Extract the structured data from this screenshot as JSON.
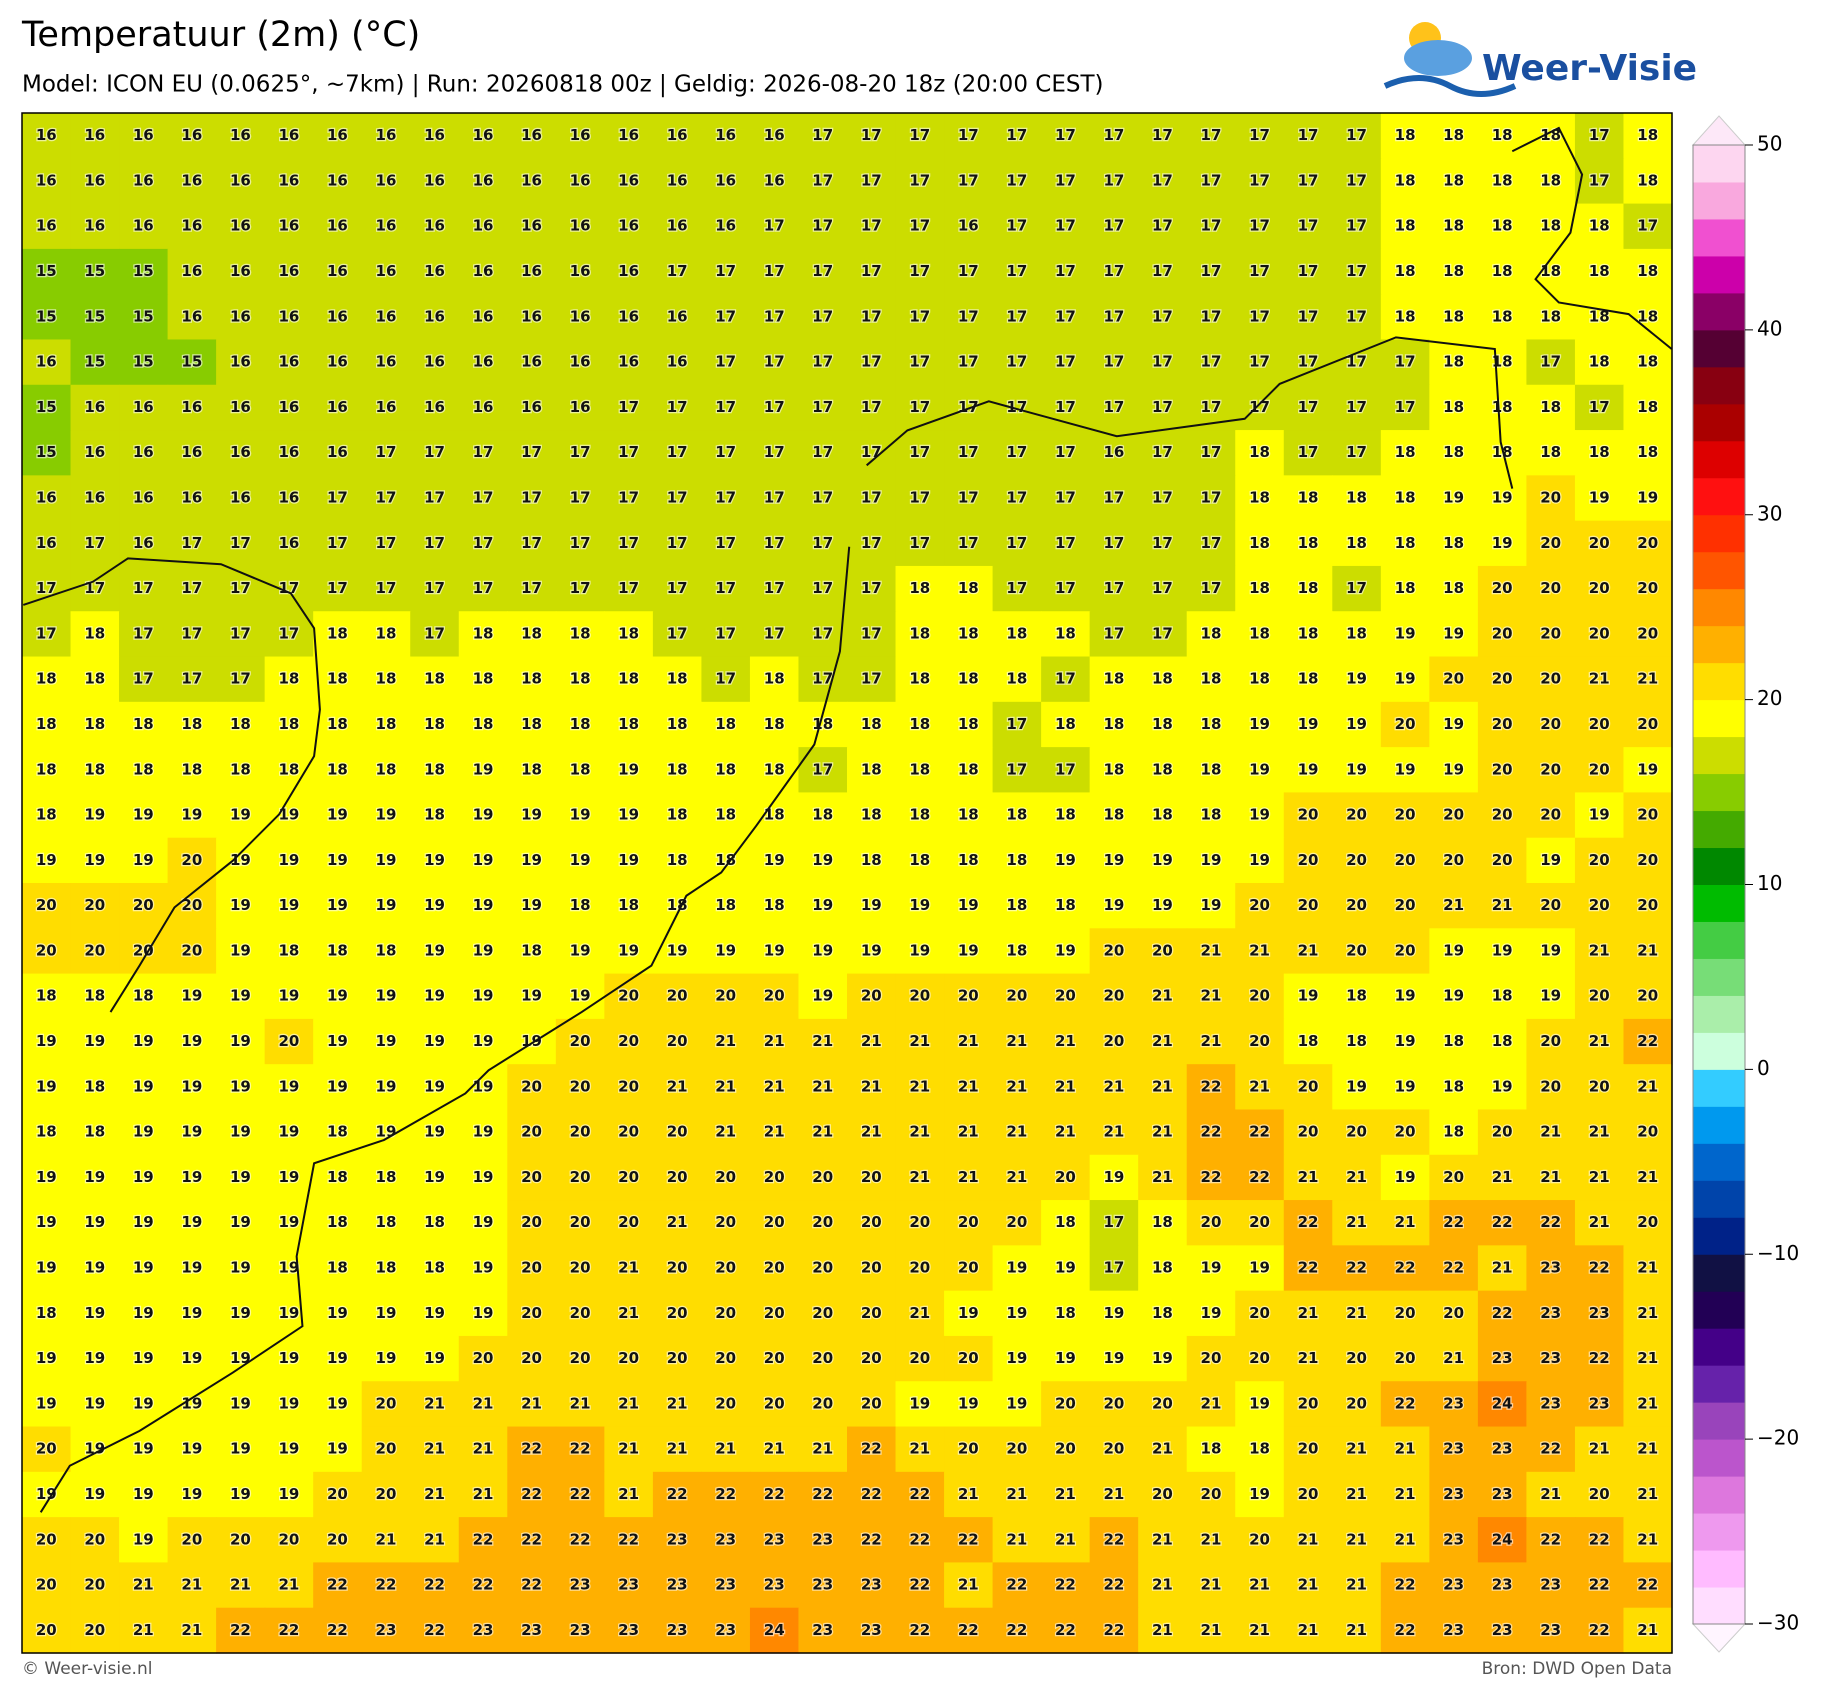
{
  "header": {
    "title": "Temperatuur (2m) (°C)",
    "subtitle": "Model: ICON EU (0.0625°, ~7km)  |  Run: 20260818 00z  |  Geldig: 2026-08-20 18z (20:00 CEST)"
  },
  "logo": {
    "text": "Weer-Visie"
  },
  "map": {
    "rows": [
      [
        16,
        16,
        16,
        16,
        16,
        16,
        16,
        16,
        16,
        16,
        16,
        16,
        16,
        16,
        16,
        16,
        17,
        17,
        17,
        17,
        17,
        17,
        17,
        17,
        17,
        17,
        17,
        17,
        18,
        18,
        18,
        18,
        17,
        18
      ],
      [
        16,
        16,
        16,
        16,
        16,
        16,
        16,
        16,
        16,
        16,
        16,
        16,
        16,
        16,
        16,
        16,
        17,
        17,
        17,
        17,
        17,
        17,
        17,
        17,
        17,
        17,
        17,
        17,
        18,
        18,
        18,
        18,
        17,
        18
      ],
      [
        16,
        16,
        16,
        16,
        16,
        16,
        16,
        16,
        16,
        16,
        16,
        16,
        16,
        16,
        16,
        17,
        17,
        17,
        17,
        16,
        17,
        17,
        17,
        17,
        17,
        17,
        17,
        17,
        18,
        18,
        18,
        18,
        18,
        17
      ],
      [
        15,
        15,
        15,
        16,
        16,
        16,
        16,
        16,
        16,
        16,
        16,
        16,
        16,
        17,
        17,
        17,
        17,
        17,
        17,
        17,
        17,
        17,
        17,
        17,
        17,
        17,
        17,
        17,
        18,
        18,
        18,
        18,
        18,
        18
      ],
      [
        15,
        15,
        15,
        16,
        16,
        16,
        16,
        16,
        16,
        16,
        16,
        16,
        16,
        16,
        17,
        17,
        17,
        17,
        17,
        17,
        17,
        17,
        17,
        17,
        17,
        17,
        17,
        17,
        18,
        18,
        18,
        18,
        18,
        18
      ],
      [
        16,
        15,
        15,
        15,
        16,
        16,
        16,
        16,
        16,
        16,
        16,
        16,
        16,
        16,
        17,
        17,
        17,
        17,
        17,
        17,
        17,
        17,
        17,
        17,
        17,
        17,
        17,
        17,
        17,
        18,
        18,
        17,
        18,
        18
      ],
      [
        15,
        16,
        16,
        16,
        16,
        16,
        16,
        16,
        16,
        16,
        16,
        16,
        17,
        17,
        17,
        17,
        17,
        17,
        17,
        17,
        17,
        17,
        17,
        17,
        17,
        17,
        17,
        17,
        17,
        18,
        18,
        18,
        17,
        18
      ],
      [
        15,
        16,
        16,
        16,
        16,
        16,
        16,
        17,
        17,
        17,
        17,
        17,
        17,
        17,
        17,
        17,
        17,
        17,
        17,
        17,
        17,
        17,
        16,
        17,
        17,
        18,
        17,
        17,
        18,
        18,
        18,
        18,
        18,
        18
      ],
      [
        16,
        16,
        16,
        16,
        16,
        16,
        17,
        17,
        17,
        17,
        17,
        17,
        17,
        17,
        17,
        17,
        17,
        17,
        17,
        17,
        17,
        17,
        17,
        17,
        17,
        18,
        18,
        18,
        18,
        19,
        19,
        20,
        19,
        19
      ],
      [
        16,
        17,
        16,
        17,
        17,
        16,
        17,
        17,
        17,
        17,
        17,
        17,
        17,
        17,
        17,
        17,
        17,
        17,
        17,
        17,
        17,
        17,
        17,
        17,
        17,
        18,
        18,
        18,
        18,
        18,
        19,
        20,
        20,
        20
      ],
      [
        17,
        17,
        17,
        17,
        17,
        17,
        17,
        17,
        17,
        17,
        17,
        17,
        17,
        17,
        17,
        17,
        17,
        17,
        18,
        18,
        17,
        17,
        17,
        17,
        17,
        18,
        18,
        17,
        18,
        18,
        20,
        20,
        20,
        20
      ],
      [
        17,
        18,
        17,
        17,
        17,
        17,
        18,
        18,
        17,
        18,
        18,
        18,
        18,
        17,
        17,
        17,
        17,
        17,
        18,
        18,
        18,
        18,
        17,
        17,
        18,
        18,
        18,
        18,
        19,
        19,
        20,
        20,
        20,
        20
      ],
      [
        18,
        18,
        17,
        17,
        17,
        18,
        18,
        18,
        18,
        18,
        18,
        18,
        18,
        18,
        17,
        18,
        17,
        17,
        18,
        18,
        18,
        17,
        18,
        18,
        18,
        18,
        18,
        19,
        19,
        20,
        20,
        20,
        21,
        21
      ],
      [
        18,
        18,
        18,
        18,
        18,
        18,
        18,
        18,
        18,
        18,
        18,
        18,
        18,
        18,
        18,
        18,
        18,
        18,
        18,
        18,
        17,
        18,
        18,
        18,
        18,
        19,
        19,
        19,
        20,
        19,
        20,
        20,
        20,
        20
      ],
      [
        18,
        18,
        18,
        18,
        18,
        18,
        18,
        18,
        18,
        19,
        18,
        18,
        19,
        18,
        18,
        18,
        17,
        18,
        18,
        18,
        17,
        17,
        18,
        18,
        18,
        19,
        19,
        19,
        19,
        19,
        20,
        20,
        20,
        19
      ],
      [
        18,
        19,
        19,
        19,
        19,
        19,
        19,
        19,
        18,
        19,
        19,
        19,
        19,
        18,
        18,
        18,
        18,
        18,
        18,
        18,
        18,
        18,
        18,
        18,
        18,
        19,
        20,
        20,
        20,
        20,
        20,
        20,
        19,
        20
      ],
      [
        19,
        19,
        19,
        20,
        19,
        19,
        19,
        19,
        19,
        19,
        19,
        19,
        19,
        18,
        18,
        19,
        19,
        18,
        18,
        18,
        18,
        19,
        19,
        19,
        19,
        19,
        20,
        20,
        20,
        20,
        20,
        19,
        20,
        20
      ],
      [
        20,
        20,
        20,
        20,
        19,
        19,
        19,
        19,
        19,
        19,
        19,
        18,
        18,
        18,
        18,
        18,
        19,
        19,
        19,
        19,
        18,
        18,
        19,
        19,
        19,
        20,
        20,
        20,
        20,
        21,
        21,
        20,
        20,
        20
      ],
      [
        20,
        20,
        20,
        20,
        19,
        18,
        18,
        18,
        19,
        19,
        18,
        19,
        19,
        19,
        19,
        19,
        19,
        19,
        19,
        19,
        18,
        19,
        20,
        20,
        21,
        21,
        21,
        20,
        20,
        19,
        19,
        19,
        21,
        21
      ],
      [
        18,
        18,
        18,
        19,
        19,
        19,
        19,
        19,
        19,
        19,
        19,
        19,
        20,
        20,
        20,
        20,
        19,
        20,
        20,
        20,
        20,
        20,
        20,
        21,
        21,
        20,
        19,
        18,
        19,
        19,
        18,
        19,
        20,
        20
      ],
      [
        19,
        19,
        19,
        19,
        19,
        20,
        19,
        19,
        19,
        19,
        19,
        20,
        20,
        20,
        21,
        21,
        21,
        21,
        21,
        21,
        21,
        21,
        20,
        21,
        21,
        20,
        18,
        18,
        19,
        18,
        18,
        20,
        21,
        22
      ],
      [
        19,
        18,
        19,
        19,
        19,
        19,
        19,
        19,
        19,
        19,
        20,
        20,
        20,
        21,
        21,
        21,
        21,
        21,
        21,
        21,
        21,
        21,
        21,
        21,
        22,
        21,
        20,
        19,
        19,
        18,
        19,
        20,
        20,
        21
      ],
      [
        18,
        18,
        19,
        19,
        19,
        19,
        18,
        19,
        19,
        19,
        20,
        20,
        20,
        20,
        21,
        21,
        21,
        21,
        21,
        21,
        21,
        21,
        21,
        21,
        22,
        22,
        20,
        20,
        20,
        18,
        20,
        21,
        21,
        20
      ],
      [
        19,
        19,
        19,
        19,
        19,
        19,
        18,
        18,
        19,
        19,
        20,
        20,
        20,
        20,
        20,
        20,
        20,
        20,
        21,
        21,
        21,
        20,
        19,
        21,
        22,
        22,
        21,
        21,
        19,
        20,
        21,
        21,
        21,
        21
      ],
      [
        19,
        19,
        19,
        19,
        19,
        19,
        18,
        18,
        18,
        19,
        20,
        20,
        20,
        21,
        20,
        20,
        20,
        20,
        20,
        20,
        20,
        18,
        17,
        18,
        20,
        20,
        22,
        21,
        21,
        22,
        22,
        22,
        21,
        20
      ],
      [
        19,
        19,
        19,
        19,
        19,
        19,
        18,
        18,
        18,
        19,
        20,
        20,
        21,
        20,
        20,
        20,
        20,
        20,
        20,
        20,
        19,
        19,
        17,
        18,
        19,
        19,
        22,
        22,
        22,
        22,
        21,
        23,
        22,
        21
      ],
      [
        18,
        19,
        19,
        19,
        19,
        19,
        19,
        19,
        19,
        19,
        20,
        20,
        21,
        20,
        20,
        20,
        20,
        20,
        21,
        19,
        19,
        18,
        19,
        18,
        19,
        20,
        21,
        21,
        20,
        20,
        22,
        23,
        23,
        21
      ],
      [
        19,
        19,
        19,
        19,
        19,
        19,
        19,
        19,
        19,
        20,
        20,
        20,
        20,
        20,
        20,
        20,
        20,
        20,
        20,
        20,
        19,
        19,
        19,
        19,
        20,
        20,
        21,
        20,
        20,
        21,
        23,
        23,
        22,
        21
      ],
      [
        19,
        19,
        19,
        19,
        19,
        19,
        19,
        20,
        21,
        21,
        21,
        21,
        21,
        21,
        20,
        20,
        20,
        20,
        19,
        19,
        19,
        20,
        20,
        20,
        21,
        19,
        20,
        20,
        22,
        23,
        24,
        23,
        23,
        21
      ],
      [
        20,
        19,
        19,
        19,
        19,
        19,
        19,
        20,
        21,
        21,
        22,
        22,
        21,
        21,
        21,
        21,
        21,
        22,
        21,
        20,
        20,
        20,
        20,
        21,
        18,
        18,
        20,
        21,
        21,
        23,
        23,
        22,
        21,
        21
      ],
      [
        19,
        19,
        19,
        19,
        19,
        19,
        20,
        20,
        21,
        21,
        22,
        22,
        21,
        22,
        22,
        22,
        22,
        22,
        22,
        21,
        21,
        21,
        21,
        20,
        20,
        19,
        20,
        21,
        21,
        23,
        23,
        21,
        20,
        21
      ],
      [
        20,
        20,
        19,
        20,
        20,
        20,
        20,
        21,
        21,
        22,
        22,
        22,
        22,
        23,
        23,
        23,
        23,
        22,
        22,
        22,
        21,
        21,
        22,
        21,
        21,
        20,
        21,
        21,
        21,
        23,
        24,
        22,
        22,
        21
      ],
      [
        20,
        20,
        21,
        21,
        21,
        21,
        22,
        22,
        22,
        22,
        22,
        23,
        23,
        23,
        23,
        23,
        23,
        23,
        22,
        21,
        22,
        22,
        22,
        21,
        21,
        21,
        21,
        21,
        22,
        23,
        23,
        23,
        22,
        22
      ],
      [
        20,
        20,
        21,
        21,
        22,
        22,
        22,
        23,
        22,
        23,
        23,
        23,
        23,
        23,
        23,
        24,
        23,
        23,
        22,
        22,
        22,
        22,
        22,
        21,
        21,
        21,
        21,
        21,
        22,
        23,
        23,
        23,
        22,
        21
      ]
    ]
  },
  "colorbar": {
    "lim": [
      -30,
      50
    ],
    "ticks": [
      50,
      40,
      30,
      20,
      10,
      0,
      {
        "value": -10,
        "label": "−10"
      },
      {
        "value": -20,
        "label": "−20"
      },
      {
        "value": -30,
        "label": "−30"
      }
    ],
    "colors": [
      "#ffddff",
      "#ffbbff",
      "#ee99ee",
      "#dd77dd",
      "#bb55cc",
      "#9944bb",
      "#6622aa",
      "#440088",
      "#220055",
      "#111144",
      "#002288",
      "#0044aa",
      "#0066cc",
      "#0099ee",
      "#33ccff",
      "#ccffdd",
      "#aaeeaa",
      "#77dd77",
      "#44cc44",
      "#00bb00",
      "#008800",
      "#44aa00",
      "#88cc00",
      "#ccdd00",
      "#ffff00",
      "#ffdd00",
      "#ffb000",
      "#ff8800",
      "#ff5500",
      "#ff3000",
      "#ff1010",
      "#dd0000",
      "#aa0000",
      "#880011",
      "#550033",
      "#8a0066",
      "#cc00aa",
      "#f050d0",
      "#f9a8de",
      "#fdd6f0"
    ]
  },
  "footer": {
    "left": "© Weer-visie.nl",
    "right": "Bron: DWD Open Data"
  }
}
